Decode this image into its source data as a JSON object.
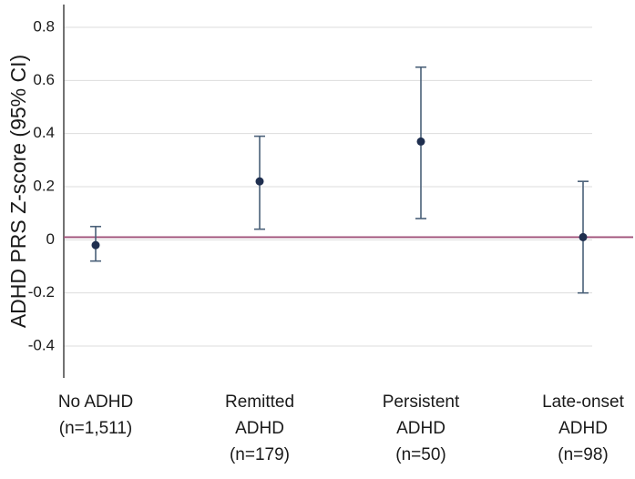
{
  "chart_data": {
    "type": "scatter",
    "title": "",
    "xlabel": "",
    "ylabel": "ADHD PRS Z-score (95% CI)",
    "ylim": [
      -0.5,
      0.85
    ],
    "yticks": [
      -0.4,
      -0.2,
      0,
      0.2,
      0.4,
      0.6,
      0.8
    ],
    "ytick_labels": [
      "-0.4",
      "-0.2",
      "0",
      "0.2",
      "0.4",
      "0.6",
      "0.8"
    ],
    "grid": true,
    "reference_line": 0.01,
    "categories": [
      [
        "No ADHD",
        "(n=1,511)"
      ],
      [
        "Remitted",
        "ADHD",
        "(n=179)"
      ],
      [
        "Persistent",
        "ADHD",
        "(n=50)"
      ],
      [
        "Late-onset",
        "ADHD",
        "(n=98)"
      ]
    ],
    "points": [
      {
        "y": -0.02,
        "ci_low": -0.08,
        "ci_high": 0.05
      },
      {
        "y": 0.22,
        "ci_low": 0.04,
        "ci_high": 0.39
      },
      {
        "y": 0.37,
        "ci_low": 0.08,
        "ci_high": 0.65
      },
      {
        "y": 0.01,
        "ci_low": -0.2,
        "ci_high": 0.22
      }
    ],
    "colors": {
      "marker": "#1f2f4f",
      "errorbar": "#4a6078",
      "reference": "#a0527a",
      "grid": "#dddddd",
      "axis": "#444444"
    }
  }
}
